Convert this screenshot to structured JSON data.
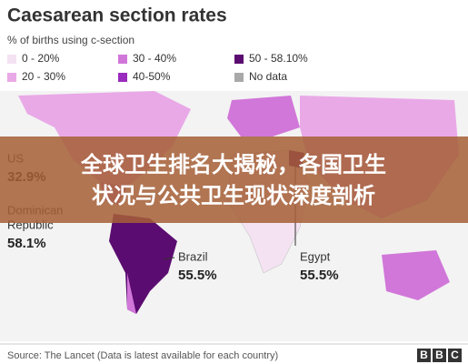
{
  "header": {
    "title": "Caesarean section rates",
    "subtitle": "% of births using c-section"
  },
  "legend": [
    {
      "label": "0 - 20%",
      "color": "#f4e2f2"
    },
    {
      "label": "30 - 40%",
      "color": "#d177d9"
    },
    {
      "label": "50 - 58.10%",
      "color": "#5b0c70"
    },
    {
      "label": "20 - 30%",
      "color": "#e9a9e7"
    },
    {
      "label": "40-50%",
      "color": "#9a2cbf"
    },
    {
      "label": "No data",
      "color": "#a9a9a9"
    }
  ],
  "callouts": [
    {
      "name": [
        "US"
      ],
      "value": "32.9%"
    },
    {
      "name": [
        "Dominican",
        "Republic"
      ],
      "value": "58.1%"
    },
    {
      "name": [
        "Brazil"
      ],
      "value": "55.5%"
    },
    {
      "name": [
        "Egypt"
      ],
      "value": "55.5%"
    }
  ],
  "banner": [
    "全球卫生排名大揭秘，各国卫生",
    "状况与公共卫生现状深度剖析"
  ],
  "footer": {
    "source": "Source: The Lancet (Data is latest available for each country)",
    "logo": [
      "B",
      "B",
      "C"
    ]
  }
}
